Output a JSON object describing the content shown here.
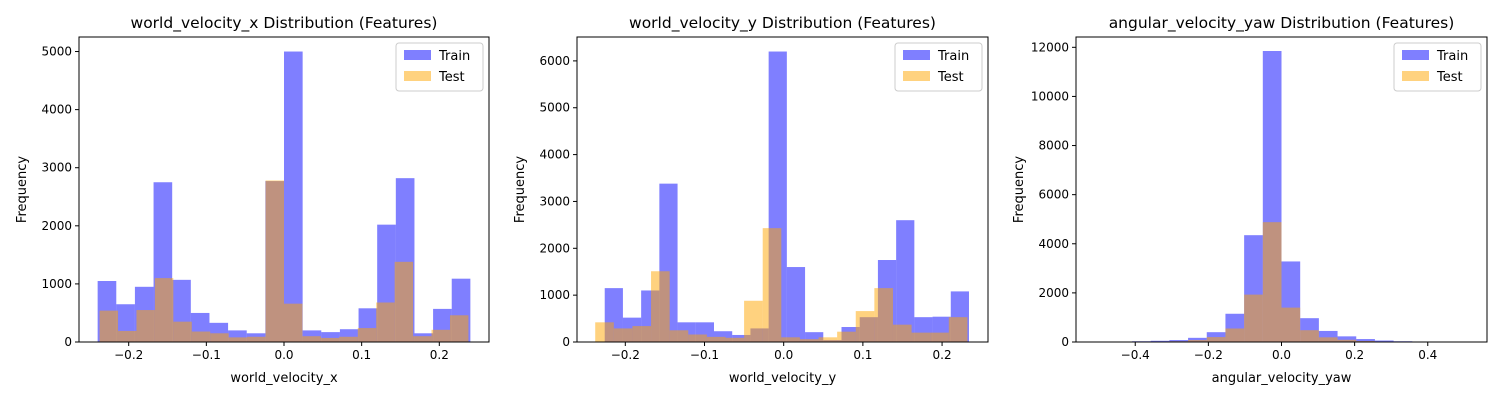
{
  "chart_data": [
    {
      "type": "bar",
      "title": "world_velocity_x Distribution (Features)",
      "xlabel": "world_velocity_x",
      "ylabel": "Frequency",
      "xlim": [
        -0.264,
        0.264
      ],
      "ylim": [
        0,
        5250
      ],
      "xticks": [
        -0.2,
        -0.1,
        0.0,
        0.1,
        0.2
      ],
      "xtick_labels": [
        "−0.2",
        "−0.1",
        "0.0",
        "0.1",
        "0.2"
      ],
      "yticks": [
        0,
        1000,
        2000,
        3000,
        4000,
        5000
      ],
      "ytick_labels": [
        "0",
        "1000",
        "2000",
        "3000",
        "4000",
        "5000"
      ],
      "legend_position": "top-right",
      "colors": {
        "train": "#0000ff",
        "test": "#ffa500",
        "opacity": 0.5
      },
      "series": [
        {
          "name": "Train",
          "bin_start": -0.24,
          "bin_width": 0.024,
          "values": [
            1050,
            650,
            950,
            2750,
            1070,
            500,
            330,
            200,
            150,
            2770,
            5000,
            200,
            170,
            220,
            580,
            2020,
            2820,
            150,
            570,
            1090
          ]
        },
        {
          "name": "Test",
          "bin_start": -0.2375,
          "bin_width": 0.02375,
          "values": [
            540,
            190,
            550,
            1100,
            350,
            180,
            150,
            80,
            90,
            2780,
            660,
            100,
            70,
            90,
            240,
            680,
            1380,
            100,
            210,
            460
          ]
        }
      ]
    },
    {
      "type": "bar",
      "title": "world_velocity_y Distribution (Features)",
      "xlabel": "world_velocity_y",
      "ylabel": "Frequency",
      "xlim": [
        -0.261,
        0.258
      ],
      "ylim": [
        0,
        6510
      ],
      "xticks": [
        -0.2,
        -0.1,
        0.0,
        0.1,
        0.2
      ],
      "xtick_labels": [
        "−0.2",
        "−0.1",
        "0.0",
        "0.1",
        "0.2"
      ],
      "yticks": [
        0,
        1000,
        2000,
        3000,
        4000,
        5000,
        6000
      ],
      "ytick_labels": [
        "0",
        "1000",
        "2000",
        "3000",
        "4000",
        "5000",
        "6000"
      ],
      "legend_position": "top-right",
      "colors": {
        "train": "#0000ff",
        "test": "#ffa500",
        "opacity": 0.5
      },
      "series": [
        {
          "name": "Train",
          "bin_start": -0.226,
          "bin_width": 0.023,
          "values": [
            1150,
            520,
            1100,
            3380,
            420,
            420,
            230,
            150,
            290,
            6200,
            1600,
            210,
            40,
            320,
            530,
            1750,
            2600,
            530,
            540,
            1080
          ]
        },
        {
          "name": "Test",
          "bin_start": -0.238,
          "bin_width": 0.0235,
          "values": [
            420,
            290,
            340,
            1510,
            250,
            160,
            110,
            90,
            880,
            2430,
            100,
            60,
            100,
            220,
            660,
            1150,
            370,
            200,
            200,
            530
          ]
        }
      ]
    },
    {
      "type": "bar",
      "title": "angular_velocity_yaw Distribution (Features)",
      "xlabel": "angular_velocity_yaw",
      "ylabel": "Frequency",
      "xlim": [
        -0.562,
        0.562
      ],
      "ylim": [
        0,
        12420
      ],
      "xticks": [
        -0.4,
        -0.2,
        0.0,
        0.2,
        0.4
      ],
      "xtick_labels": [
        "−0.4",
        "−0.2",
        "0.0",
        "0.2",
        "0.4"
      ],
      "yticks": [
        0,
        2000,
        4000,
        6000,
        8000,
        10000,
        12000
      ],
      "ytick_labels": [
        "0",
        "2000",
        "4000",
        "6000",
        "8000",
        "10000",
        "12000"
      ],
      "legend_position": "top-right",
      "colors": {
        "train": "#0000ff",
        "test": "#ffa500",
        "opacity": 0.5
      },
      "series": [
        {
          "name": "Train",
          "bin_start": -0.511,
          "bin_width": 0.0511,
          "values": [
            20,
            20,
            30,
            50,
            80,
            170,
            400,
            1150,
            4350,
            11850,
            3280,
            970,
            450,
            230,
            120,
            60,
            30,
            20,
            20,
            20
          ]
        },
        {
          "name": "Test",
          "bin_start": -0.511,
          "bin_width": 0.0511,
          "values": [
            5,
            5,
            10,
            20,
            30,
            80,
            200,
            550,
            1930,
            4880,
            1400,
            480,
            190,
            90,
            40,
            20,
            10,
            5,
            5,
            5
          ]
        }
      ]
    }
  ]
}
